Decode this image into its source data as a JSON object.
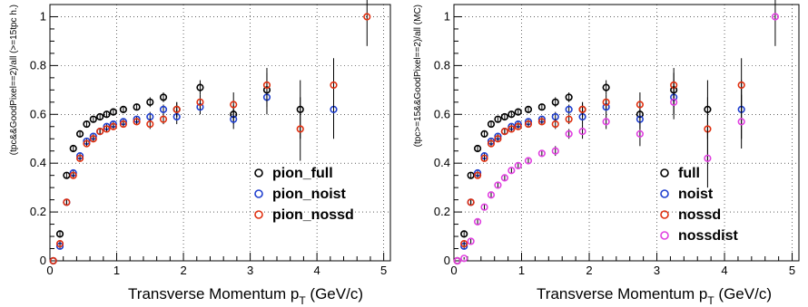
{
  "chart_data": [
    {
      "type": "scatter",
      "title": "",
      "xlabel": "Transverse Momentum p",
      "xlabel_sub": "T",
      "xlabel_unit": " (GeV/c)",
      "ylabel": "(tpc&&GoodPixel==2)/all (>=15tpc h.)",
      "xlim": [
        0,
        5.1
      ],
      "ylim": [
        0,
        1.05
      ],
      "xticks": [
        "0",
        "1",
        "2",
        "3",
        "4",
        "5"
      ],
      "yticks": [
        "0",
        "0.2",
        "0.4",
        "0.6",
        "0.8",
        "1"
      ],
      "grid": true,
      "legend_position": "bottom-right",
      "series": [
        {
          "name": "pion_full",
          "color": "#000000",
          "x": [
            0.05,
            0.15,
            0.25,
            0.35,
            0.45,
            0.55,
            0.65,
            0.75,
            0.85,
            0.95,
            1.1,
            1.3,
            1.5,
            1.7,
            1.9,
            2.25,
            2.75,
            3.25,
            3.75
          ],
          "y": [
            0.0,
            0.11,
            0.35,
            0.46,
            0.52,
            0.56,
            0.58,
            0.59,
            0.6,
            0.61,
            0.62,
            0.63,
            0.65,
            0.67,
            0.62,
            0.71,
            0.6,
            0.7,
            0.62
          ],
          "err": [
            0,
            0.01,
            0.01,
            0.01,
            0.01,
            0.01,
            0.01,
            0.01,
            0.01,
            0.01,
            0.01,
            0.01,
            0.02,
            0.02,
            0.03,
            0.03,
            0.04,
            0.07,
            0.12
          ]
        },
        {
          "name": "pion_noist",
          "color": "#1f3fcf",
          "x": [
            0.05,
            0.15,
            0.25,
            0.35,
            0.45,
            0.55,
            0.65,
            0.75,
            0.85,
            0.95,
            1.1,
            1.3,
            1.5,
            1.7,
            1.9,
            2.25,
            2.75,
            3.25,
            4.25
          ],
          "y": [
            0.0,
            0.06,
            0.24,
            0.36,
            0.43,
            0.49,
            0.51,
            0.53,
            0.55,
            0.56,
            0.57,
            0.58,
            0.59,
            0.62,
            0.59,
            0.63,
            0.58,
            0.67,
            0.62
          ],
          "err": [
            0,
            0.01,
            0.01,
            0.01,
            0.01,
            0.01,
            0.01,
            0.01,
            0.01,
            0.01,
            0.01,
            0.01,
            0.02,
            0.02,
            0.03,
            0.03,
            0.04,
            0.07,
            0.12
          ]
        },
        {
          "name": "pion_nossd",
          "color": "#e03010",
          "x": [
            0.05,
            0.15,
            0.25,
            0.35,
            0.45,
            0.55,
            0.65,
            0.75,
            0.85,
            0.95,
            1.1,
            1.3,
            1.5,
            1.7,
            1.9,
            2.25,
            2.75,
            3.25,
            3.75,
            4.25,
            4.75
          ],
          "y": [
            0.0,
            0.07,
            0.24,
            0.35,
            0.42,
            0.48,
            0.5,
            0.53,
            0.54,
            0.55,
            0.56,
            0.57,
            0.56,
            0.58,
            0.62,
            0.65,
            0.64,
            0.72,
            0.54,
            0.72,
            1.0
          ],
          "err": [
            0,
            0.01,
            0.01,
            0.01,
            0.01,
            0.01,
            0.01,
            0.01,
            0.01,
            0.01,
            0.01,
            0.01,
            0.02,
            0.02,
            0.03,
            0.03,
            0.05,
            0.07,
            0.13,
            0.11,
            0.12
          ]
        }
      ]
    },
    {
      "type": "scatter",
      "title": "",
      "xlabel": "Transverse Momentum p",
      "xlabel_sub": "T",
      "xlabel_unit": " (GeV/c)",
      "ylabel": "(tpc>=15&&GoodPixel==2)/all (MC)",
      "xlim": [
        0,
        5.1
      ],
      "ylim": [
        0,
        1.05
      ],
      "xticks": [
        "0",
        "1",
        "2",
        "3",
        "4",
        "5"
      ],
      "yticks": [
        "0",
        "0.2",
        "0.4",
        "0.6",
        "0.8",
        "1"
      ],
      "grid": true,
      "legend_position": "bottom-right",
      "series": [
        {
          "name": "full",
          "color": "#000000",
          "x": [
            0.05,
            0.15,
            0.25,
            0.35,
            0.45,
            0.55,
            0.65,
            0.75,
            0.85,
            0.95,
            1.1,
            1.3,
            1.5,
            1.7,
            1.9,
            2.25,
            2.75,
            3.25,
            3.75
          ],
          "y": [
            0.0,
            0.11,
            0.35,
            0.46,
            0.52,
            0.56,
            0.58,
            0.59,
            0.6,
            0.61,
            0.62,
            0.63,
            0.65,
            0.67,
            0.62,
            0.71,
            0.6,
            0.7,
            0.62
          ],
          "err": [
            0,
            0.01,
            0.01,
            0.01,
            0.01,
            0.01,
            0.01,
            0.01,
            0.01,
            0.01,
            0.01,
            0.01,
            0.02,
            0.02,
            0.03,
            0.03,
            0.04,
            0.07,
            0.12
          ]
        },
        {
          "name": "noist",
          "color": "#1f3fcf",
          "x": [
            0.05,
            0.15,
            0.25,
            0.35,
            0.45,
            0.55,
            0.65,
            0.75,
            0.85,
            0.95,
            1.1,
            1.3,
            1.5,
            1.7,
            1.9,
            2.25,
            2.75,
            3.25,
            4.25
          ],
          "y": [
            0.0,
            0.06,
            0.24,
            0.36,
            0.43,
            0.49,
            0.51,
            0.53,
            0.55,
            0.56,
            0.57,
            0.58,
            0.59,
            0.62,
            0.59,
            0.63,
            0.58,
            0.67,
            0.62
          ],
          "err": [
            0,
            0.01,
            0.01,
            0.01,
            0.01,
            0.01,
            0.01,
            0.01,
            0.01,
            0.01,
            0.01,
            0.01,
            0.02,
            0.02,
            0.03,
            0.03,
            0.04,
            0.07,
            0.12
          ]
        },
        {
          "name": "nossd",
          "color": "#e03010",
          "x": [
            0.05,
            0.15,
            0.25,
            0.35,
            0.45,
            0.55,
            0.65,
            0.75,
            0.85,
            0.95,
            1.1,
            1.3,
            1.5,
            1.7,
            1.9,
            2.25,
            2.75,
            3.25,
            3.75,
            4.25
          ],
          "y": [
            0.0,
            0.07,
            0.24,
            0.35,
            0.42,
            0.48,
            0.5,
            0.53,
            0.54,
            0.55,
            0.56,
            0.57,
            0.56,
            0.58,
            0.62,
            0.65,
            0.64,
            0.72,
            0.54,
            0.72
          ],
          "err": [
            0,
            0.01,
            0.01,
            0.01,
            0.01,
            0.01,
            0.01,
            0.01,
            0.01,
            0.01,
            0.01,
            0.01,
            0.02,
            0.02,
            0.03,
            0.03,
            0.05,
            0.07,
            0.13,
            0.11
          ]
        },
        {
          "name": "nossdist",
          "color": "#e040e0",
          "x": [
            0.05,
            0.15,
            0.25,
            0.35,
            0.45,
            0.55,
            0.65,
            0.75,
            0.85,
            0.95,
            1.1,
            1.3,
            1.5,
            1.7,
            1.9,
            2.25,
            2.75,
            3.25,
            3.75,
            4.25,
            4.75
          ],
          "y": [
            0.0,
            0.01,
            0.08,
            0.16,
            0.22,
            0.27,
            0.31,
            0.34,
            0.37,
            0.39,
            0.41,
            0.44,
            0.45,
            0.52,
            0.53,
            0.57,
            0.52,
            0.65,
            0.42,
            0.57,
            1.0
          ],
          "err": [
            0,
            0.005,
            0.01,
            0.01,
            0.01,
            0.01,
            0.01,
            0.01,
            0.01,
            0.01,
            0.01,
            0.01,
            0.02,
            0.02,
            0.03,
            0.03,
            0.05,
            0.07,
            0.12,
            0.11,
            0.12
          ]
        }
      ]
    }
  ]
}
